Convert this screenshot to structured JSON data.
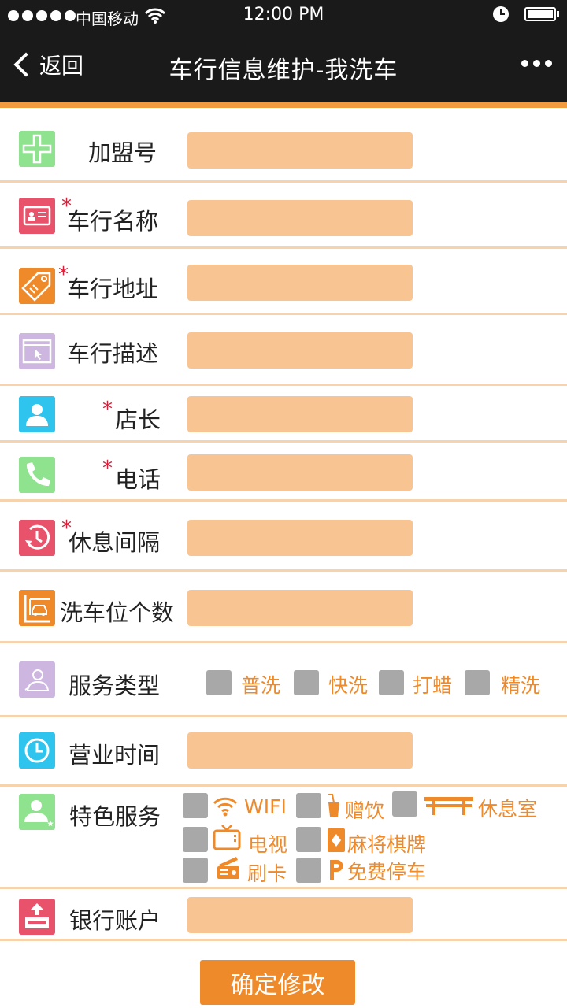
{
  "status_bar": {
    "carrier": "中国移动",
    "time": "12:00 PM"
  },
  "nav": {
    "back_label": "返回",
    "title": "车行信息维护-我洗车"
  },
  "form": {
    "franchise_no": {
      "label": "加盟号",
      "value": ""
    },
    "shop_name": {
      "label": "车行名称",
      "required": "*",
      "value": ""
    },
    "shop_address": {
      "label": "车行地址",
      "required": "*",
      "value": ""
    },
    "shop_description": {
      "label": "车行描述",
      "value": ""
    },
    "manager": {
      "label": "店长",
      "required": "*",
      "value": ""
    },
    "phone": {
      "label": "电话",
      "required": "*",
      "value": ""
    },
    "rest_interval": {
      "label": "休息间隔",
      "required": "*",
      "value": ""
    },
    "wash_bays": {
      "label": "洗车位个数",
      "value": ""
    },
    "service_types": {
      "label": "服务类型",
      "options": [
        "普洗",
        "快洗",
        "打蜡",
        "精洗"
      ]
    },
    "business_hours": {
      "label": "营业时间",
      "value": ""
    },
    "special_services": {
      "label": "特色服务",
      "options": [
        "WIFI",
        "赠饮",
        "休息室",
        "电视",
        "麻将棋牌",
        "刷卡",
        "免费停车"
      ]
    },
    "bank_account": {
      "label": "银行账户",
      "value": ""
    }
  },
  "submit_label": "确定修改",
  "colors": {
    "accent": "#ef8a2b",
    "input_bg": "#f7c492",
    "required": "#d6203a",
    "nav_bg": "#1a1a1a"
  }
}
